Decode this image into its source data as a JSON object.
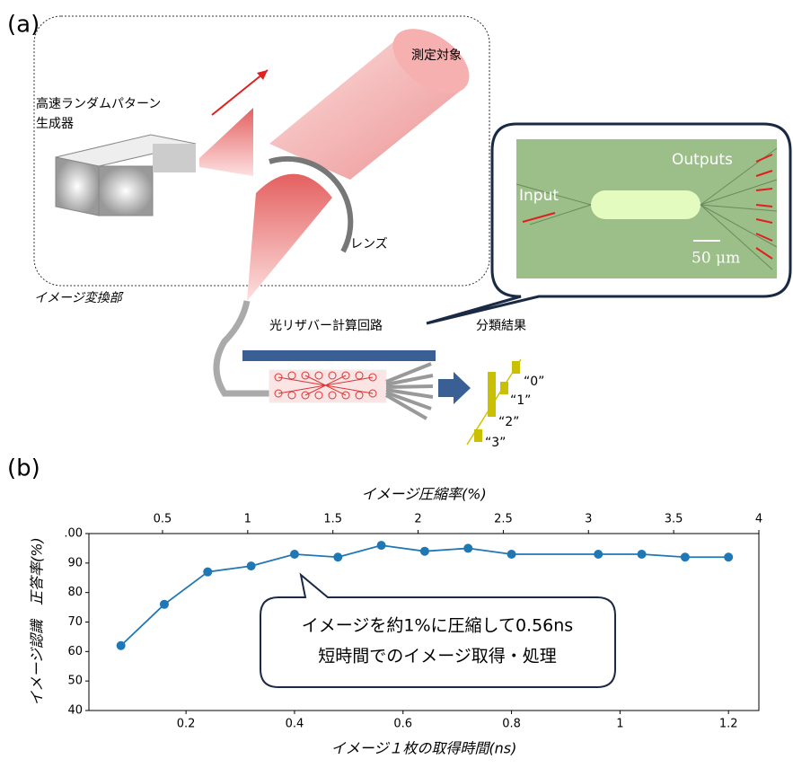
{
  "panel_a": {
    "label": "(a)",
    "target": "測定対象",
    "generator": [
      "高速ランダムパターン",
      "生成器"
    ],
    "lens": "レンズ",
    "converter": "イメージ変換部",
    "reservoir": "光リザバー計算回路",
    "result": "分類結果",
    "input": "Input",
    "outputs": "Outputs",
    "scale": "50 μm",
    "classes": [
      "“0”",
      "“1”",
      "“2”",
      "“3”"
    ]
  },
  "panel_b": {
    "label": "(b)",
    "callout": [
      "イメージを約1%に圧縮して0.56ns",
      "短時間でのイメージ取得・処理"
    ]
  },
  "chart_data": {
    "type": "line",
    "xlabel": "イメージ１枚の取得時間(ns)",
    "ylabel": "イメージ認識　正答率(%)",
    "x2label": "イメージ圧縮率(%)",
    "x": [
      0.08,
      0.16,
      0.24,
      0.32,
      0.4,
      0.48,
      0.56,
      0.64,
      0.72,
      0.8,
      0.96,
      1.04,
      1.12,
      1.2
    ],
    "values": [
      62,
      76,
      87,
      89,
      93,
      92,
      96,
      94,
      95,
      93,
      93,
      93,
      92,
      92
    ],
    "color": "#1f77b4",
    "xlim": [
      0.021,
      1.256
    ],
    "xticks": [
      0.2,
      0.4,
      0.6,
      0.8,
      1.0,
      1.2
    ],
    "x2lim": [
      0.068,
      4.0
    ],
    "x2ticks": [
      0.5,
      1.0,
      1.5,
      2.0,
      2.5,
      3.0,
      3.5,
      4.0
    ],
    "ylim": [
      40,
      100
    ],
    "yticks": [
      40,
      50,
      60,
      70,
      80,
      90,
      {
        "value": 100,
        "label": ".00"
      }
    ]
  }
}
